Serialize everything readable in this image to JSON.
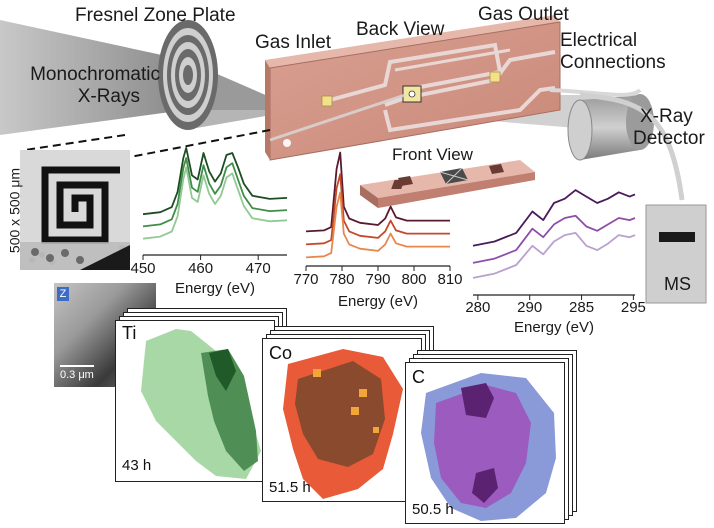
{
  "labels": {
    "fresnel": "Fresnel Zone Plate",
    "monochromatic_1": "Monochromatic",
    "monochromatic_2": "X-Rays",
    "gas_inlet": "Gas Inlet",
    "back_view": "Back View",
    "gas_outlet": "Gas Outlet",
    "electrical_1": "Electrical",
    "electrical_2": "Connections",
    "xray_det_1": "X-Ray",
    "xray_det_2": "Detector",
    "front_view": "Front View",
    "ms": "MS",
    "scale_zone": "500 x 500 μm",
    "scale_bar": "0.3 μm",
    "z_badge": "Z"
  },
  "chart_data": [
    {
      "type": "line",
      "xlabel": "Energy (eV)",
      "x_ticks": [
        "450",
        "460",
        "470"
      ],
      "xlim": [
        450,
        475
      ],
      "series": [
        {
          "color": "#1d4d23",
          "x": [
            450,
            453,
            455,
            456,
            457,
            457.5,
            458.5,
            459.5,
            460.5,
            461.5,
            462.5,
            463.5,
            464.5,
            465.5,
            466.5,
            467.5,
            469,
            472,
            475
          ],
          "values": [
            0.4,
            0.42,
            0.47,
            0.62,
            0.95,
            1.05,
            0.78,
            0.74,
            1.0,
            0.82,
            0.72,
            0.8,
            0.98,
            1.0,
            0.86,
            0.7,
            0.58,
            0.55,
            0.56
          ]
        },
        {
          "color": "#3f8e47",
          "x": [
            450,
            453,
            455,
            456,
            457,
            457.5,
            458.5,
            459.5,
            460.5,
            461.5,
            462.5,
            463.5,
            464.5,
            465.5,
            466.5,
            467.5,
            469,
            472,
            475
          ],
          "values": [
            0.28,
            0.3,
            0.35,
            0.5,
            0.85,
            0.95,
            0.66,
            0.62,
            0.88,
            0.7,
            0.6,
            0.68,
            0.86,
            0.9,
            0.74,
            0.58,
            0.46,
            0.43,
            0.44
          ]
        },
        {
          "color": "#92c994",
          "x": [
            450,
            453,
            455,
            456,
            457,
            457.5,
            458.5,
            459.5,
            460.5,
            461.5,
            462.5,
            463.5,
            464.5,
            465.5,
            466.5,
            467.5,
            469,
            472,
            475
          ],
          "values": [
            0.16,
            0.18,
            0.23,
            0.38,
            0.74,
            0.86,
            0.56,
            0.52,
            0.78,
            0.6,
            0.5,
            0.58,
            0.76,
            0.8,
            0.64,
            0.48,
            0.36,
            0.33,
            0.34
          ]
        }
      ]
    },
    {
      "type": "line",
      "xlabel": "Energy (eV)",
      "x_ticks": [
        "770",
        "780",
        "790",
        "800",
        "810"
      ],
      "xlim": [
        770,
        810
      ],
      "series": [
        {
          "color": "#5a1a2e",
          "x": [
            770,
            775,
            777,
            778.5,
            779.5,
            780.5,
            782,
            785,
            790,
            792,
            793.5,
            795,
            798,
            802,
            806,
            810
          ],
          "values": [
            0.32,
            0.33,
            0.36,
            0.9,
            1.05,
            0.55,
            0.44,
            0.4,
            0.38,
            0.44,
            0.55,
            0.45,
            0.42,
            0.42,
            0.42,
            0.42
          ]
        },
        {
          "color": "#c24a2a",
          "x": [
            770,
            775,
            777,
            778.5,
            779.5,
            780.5,
            782,
            785,
            790,
            792,
            793.5,
            795,
            798,
            802,
            806,
            810
          ],
          "values": [
            0.2,
            0.21,
            0.24,
            0.72,
            0.85,
            0.42,
            0.32,
            0.28,
            0.26,
            0.32,
            0.42,
            0.33,
            0.3,
            0.3,
            0.3,
            0.3
          ]
        },
        {
          "color": "#e8874d",
          "x": [
            770,
            775,
            777,
            778.5,
            779.5,
            780.5,
            782,
            785,
            790,
            792,
            793.5,
            795,
            798,
            802,
            806,
            810
          ],
          "values": [
            0.08,
            0.09,
            0.12,
            0.55,
            0.68,
            0.3,
            0.2,
            0.16,
            0.14,
            0.2,
            0.3,
            0.21,
            0.18,
            0.18,
            0.18,
            0.18
          ]
        }
      ]
    },
    {
      "type": "line",
      "xlabel": "Energy (eV)",
      "x_ticks": [
        "280",
        "290",
        "285",
        "295"
      ],
      "xlim": [
        280,
        295
      ],
      "series": [
        {
          "color": "#4a1a5a",
          "x": [
            280,
            282,
            284,
            285.5,
            286.5,
            287.5,
            288.5,
            289.5,
            290.5,
            291.5,
            292.5,
            293.5,
            294.5,
            295
          ],
          "values": [
            0.46,
            0.5,
            0.58,
            0.78,
            0.7,
            0.86,
            0.9,
            0.98,
            0.92,
            0.86,
            0.9,
            0.96,
            0.92,
            0.94
          ]
        },
        {
          "color": "#8e4ea8",
          "x": [
            280,
            282,
            284,
            285.5,
            286.5,
            287.5,
            288.5,
            289.5,
            290.5,
            291.5,
            292.5,
            293.5,
            294.5,
            295
          ],
          "values": [
            0.3,
            0.34,
            0.42,
            0.62,
            0.54,
            0.66,
            0.72,
            0.74,
            0.64,
            0.6,
            0.66,
            0.72,
            0.7,
            0.72
          ]
        },
        {
          "color": "#b8a0d0",
          "x": [
            280,
            282,
            284,
            285.5,
            286.5,
            287.5,
            288.5,
            289.5,
            290.5,
            291.5,
            292.5,
            293.5,
            294.5,
            295
          ],
          "values": [
            0.16,
            0.2,
            0.28,
            0.46,
            0.38,
            0.5,
            0.56,
            0.58,
            0.46,
            0.42,
            0.48,
            0.56,
            0.54,
            0.56
          ]
        }
      ]
    }
  ],
  "maps": [
    {
      "element": "Ti",
      "time": "43 h",
      "colors": {
        "background": "#a8d8a6",
        "mid": "#4f8f55",
        "dark": "#1f5a28"
      }
    },
    {
      "element": "Co",
      "time": "51.5 h",
      "colors": {
        "background": "#e85a38",
        "mid": "#8a4a2e",
        "highlight": "#f2a63a"
      }
    },
    {
      "element": "C",
      "time": "50.5 h",
      "colors": {
        "background": "#8a9ad8",
        "mid": "#9c5cbf",
        "dark": "#5a2270"
      }
    }
  ]
}
